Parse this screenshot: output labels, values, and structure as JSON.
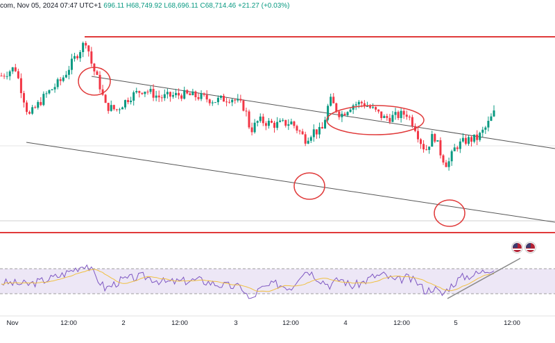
{
  "header": {
    "source": "com, Nov 05, 2024 07:47 UTC+1",
    "open": "696.11",
    "high": "H68,749.92",
    "low": "L68,696.11",
    "close": "C68,714.46",
    "change": "+21.27 (+0.03%)"
  },
  "chart_data": {
    "type": "candlestick",
    "x_tick_labels": [
      "Nov",
      "12:00",
      "2",
      "12:00",
      "3",
      "12:00",
      "4",
      "12:00",
      "5",
      "12:00"
    ],
    "colors": {
      "up": "#089981",
      "down": "#f23645",
      "annotation": "#e03a3a",
      "channel": "#555555",
      "rsi_line": "#7e57c2",
      "rsi_ma": "#f0c040",
      "rsi_band": "#ede7f6"
    },
    "price_path": [
      [
        0,
        0.66
      ],
      [
        0.025,
        0.74
      ],
      [
        0.05,
        0.27
      ],
      [
        0.08,
        0.47
      ],
      [
        0.11,
        0.62
      ],
      [
        0.14,
        0.88
      ],
      [
        0.155,
        1.0
      ],
      [
        0.165,
        0.77
      ],
      [
        0.18,
        0.56
      ],
      [
        0.19,
        0.37
      ],
      [
        0.21,
        0.33
      ],
      [
        0.235,
        0.46
      ],
      [
        0.26,
        0.53
      ],
      [
        0.29,
        0.45
      ],
      [
        0.33,
        0.48
      ],
      [
        0.36,
        0.46
      ],
      [
        0.39,
        0.42
      ],
      [
        0.42,
        0.45
      ],
      [
        0.445,
        0.35
      ],
      [
        0.455,
        0.13
      ],
      [
        0.47,
        0.23
      ],
      [
        0.5,
        0.19
      ],
      [
        0.53,
        0.21
      ],
      [
        0.545,
        0.12
      ],
      [
        0.555,
        0.05
      ],
      [
        0.57,
        0.13
      ],
      [
        0.585,
        0.12
      ],
      [
        0.6,
        0.43
      ],
      [
        0.62,
        0.28
      ],
      [
        0.64,
        0.38
      ],
      [
        0.66,
        0.4
      ],
      [
        0.68,
        0.33
      ],
      [
        0.7,
        0.25
      ],
      [
        0.72,
        0.27
      ],
      [
        0.74,
        0.3
      ],
      [
        0.755,
        0.18
      ],
      [
        0.765,
        0.04
      ],
      [
        0.775,
        -0.06
      ],
      [
        0.79,
        0.1
      ],
      [
        0.805,
        -0.12
      ],
      [
        0.815,
        -0.2
      ],
      [
        0.83,
        -0.02
      ],
      [
        0.85,
        0.04
      ],
      [
        0.87,
        0.06
      ],
      [
        0.885,
        0.16
      ],
      [
        0.9,
        0.3
      ]
    ],
    "rsi_levels": {
      "upper": 70,
      "lower": 30
    },
    "rsi_path": [
      [
        0,
        48
      ],
      [
        0.05,
        45
      ],
      [
        0.08,
        52
      ],
      [
        0.11,
        60
      ],
      [
        0.14,
        72
      ],
      [
        0.155,
        78
      ],
      [
        0.17,
        60
      ],
      [
        0.19,
        38
      ],
      [
        0.22,
        52
      ],
      [
        0.26,
        58
      ],
      [
        0.3,
        48
      ],
      [
        0.36,
        52
      ],
      [
        0.4,
        44
      ],
      [
        0.44,
        40
      ],
      [
        0.455,
        18
      ],
      [
        0.47,
        36
      ],
      [
        0.5,
        46
      ],
      [
        0.53,
        40
      ],
      [
        0.545,
        60
      ],
      [
        0.56,
        68
      ],
      [
        0.58,
        54
      ],
      [
        0.6,
        44
      ],
      [
        0.62,
        54
      ],
      [
        0.64,
        42
      ],
      [
        0.66,
        48
      ],
      [
        0.68,
        58
      ],
      [
        0.7,
        60
      ],
      [
        0.72,
        50
      ],
      [
        0.74,
        56
      ],
      [
        0.76,
        48
      ],
      [
        0.775,
        34
      ],
      [
        0.79,
        40
      ],
      [
        0.805,
        28
      ],
      [
        0.82,
        42
      ],
      [
        0.84,
        56
      ],
      [
        0.87,
        62
      ],
      [
        0.9,
        72
      ]
    ]
  }
}
